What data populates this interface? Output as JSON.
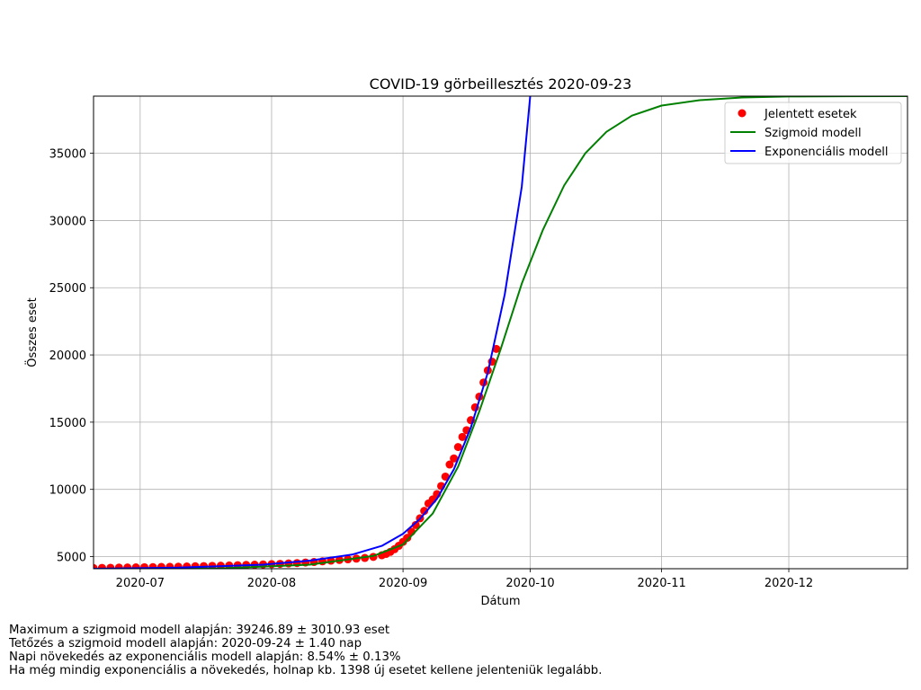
{
  "chart_data": {
    "type": "scatter",
    "title": "COVID-19 görbeillesztés 2020-09-23",
    "xlabel": "Dátum",
    "ylabel": "Összes eset",
    "x_range": [
      "2020-06-20",
      "2020-12-29"
    ],
    "ylim": [
      4100,
      39250
    ],
    "x_ticks": [
      "2020-07-01",
      "2020-08-01",
      "2020-09-01",
      "2020-10-01",
      "2020-11-01",
      "2020-12-01"
    ],
    "x_tick_labels": [
      "2020-07",
      "2020-08",
      "2020-09",
      "2020-10",
      "2020-11",
      "2020-12"
    ],
    "y_ticks": [
      5000,
      10000,
      15000,
      20000,
      25000,
      30000,
      35000
    ],
    "y_tick_labels": [
      "5000",
      "10000",
      "15000",
      "20000",
      "25000",
      "30000",
      "35000"
    ],
    "grid": true,
    "legend_position": "top-right",
    "series": [
      {
        "name": "Jelentett esetek",
        "kind": "scatter",
        "color": "#ff0000",
        "points": [
          [
            "2020-06-20",
            4150
          ],
          [
            "2020-06-22",
            4160
          ],
          [
            "2020-06-24",
            4170
          ],
          [
            "2020-06-26",
            4180
          ],
          [
            "2020-06-28",
            4190
          ],
          [
            "2020-06-30",
            4200
          ],
          [
            "2020-07-02",
            4210
          ],
          [
            "2020-07-04",
            4220
          ],
          [
            "2020-07-06",
            4230
          ],
          [
            "2020-07-08",
            4240
          ],
          [
            "2020-07-10",
            4250
          ],
          [
            "2020-07-12",
            4265
          ],
          [
            "2020-07-14",
            4280
          ],
          [
            "2020-07-16",
            4295
          ],
          [
            "2020-07-18",
            4310
          ],
          [
            "2020-07-20",
            4325
          ],
          [
            "2020-07-22",
            4340
          ],
          [
            "2020-07-24",
            4360
          ],
          [
            "2020-07-26",
            4380
          ],
          [
            "2020-07-28",
            4400
          ],
          [
            "2020-07-30",
            4420
          ],
          [
            "2020-08-01",
            4440
          ],
          [
            "2020-08-03",
            4460
          ],
          [
            "2020-08-05",
            4490
          ],
          [
            "2020-08-07",
            4520
          ],
          [
            "2020-08-09",
            4560
          ],
          [
            "2020-08-11",
            4600
          ],
          [
            "2020-08-13",
            4650
          ],
          [
            "2020-08-15",
            4700
          ],
          [
            "2020-08-17",
            4750
          ],
          [
            "2020-08-19",
            4800
          ],
          [
            "2020-08-21",
            4850
          ],
          [
            "2020-08-23",
            4900
          ],
          [
            "2020-08-25",
            4980
          ],
          [
            "2020-08-27",
            5100
          ],
          [
            "2020-08-28",
            5200
          ],
          [
            "2020-08-29",
            5350
          ],
          [
            "2020-08-30",
            5550
          ],
          [
            "2020-08-31",
            5800
          ],
          [
            "2020-09-01",
            6100
          ],
          [
            "2020-09-02",
            6400
          ],
          [
            "2020-09-03",
            6850
          ],
          [
            "2020-09-04",
            7350
          ],
          [
            "2020-09-05",
            7850
          ],
          [
            "2020-09-06",
            8400
          ],
          [
            "2020-09-07",
            8950
          ],
          [
            "2020-09-08",
            9250
          ],
          [
            "2020-09-09",
            9650
          ],
          [
            "2020-09-10",
            10250
          ],
          [
            "2020-09-11",
            10950
          ],
          [
            "2020-09-12",
            11850
          ],
          [
            "2020-09-13",
            12300
          ],
          [
            "2020-09-14",
            13150
          ],
          [
            "2020-09-15",
            13900
          ],
          [
            "2020-09-16",
            14400
          ],
          [
            "2020-09-17",
            15150
          ],
          [
            "2020-09-18",
            16100
          ],
          [
            "2020-09-19",
            16900
          ],
          [
            "2020-09-20",
            17950
          ],
          [
            "2020-09-21",
            18850
          ],
          [
            "2020-09-22",
            19500
          ],
          [
            "2020-09-23",
            20450
          ]
        ]
      },
      {
        "name": "Szigmoid modell",
        "kind": "line",
        "color": "#008000",
        "x": [
          "2020-06-20",
          "2020-07-20",
          "2020-08-10",
          "2020-08-25",
          "2020-09-01",
          "2020-09-08",
          "2020-09-14",
          "2020-09-19",
          "2020-09-24",
          "2020-09-29",
          "2020-10-04",
          "2020-10-09",
          "2020-10-14",
          "2020-10-19",
          "2020-10-25",
          "2020-11-01",
          "2020-11-10",
          "2020-11-20",
          "2020-12-01",
          "2020-12-15",
          "2020-12-29"
        ],
        "y": [
          4100,
          4130,
          4400,
          5050,
          5900,
          8200,
          11700,
          15800,
          20400,
          25300,
          29300,
          32600,
          35000,
          36600,
          37800,
          38550,
          38950,
          39150,
          39220,
          39245,
          39250
        ]
      },
      {
        "name": "Exponenciális modell",
        "kind": "line",
        "color": "#0000ff",
        "x": [
          "2020-06-20",
          "2020-07-10",
          "2020-07-30",
          "2020-08-10",
          "2020-08-20",
          "2020-08-27",
          "2020-09-01",
          "2020-09-05",
          "2020-09-09",
          "2020-09-13",
          "2020-09-17",
          "2020-09-21",
          "2020-09-25",
          "2020-09-29",
          "2020-10-01"
        ],
        "y": [
          4100,
          4180,
          4400,
          4700,
          5150,
          5800,
          6700,
          7800,
          9300,
          11500,
          14600,
          18700,
          24500,
          32500,
          39250
        ]
      }
    ]
  },
  "notes": [
    "Maximum a szigmoid modell alapján: 39246.89 ± 3010.93 eset",
    "Tetőzés a szigmoid modell alapján: 2020-09-24 ± 1.40 nap",
    "Napi növekedés az exponenciális modell alapján: 8.54% ± 0.13%",
    "Ha még mindig exponenciális a növekedés, holnap kb. 1398 új esetet kellene jelenteniük legalább."
  ]
}
